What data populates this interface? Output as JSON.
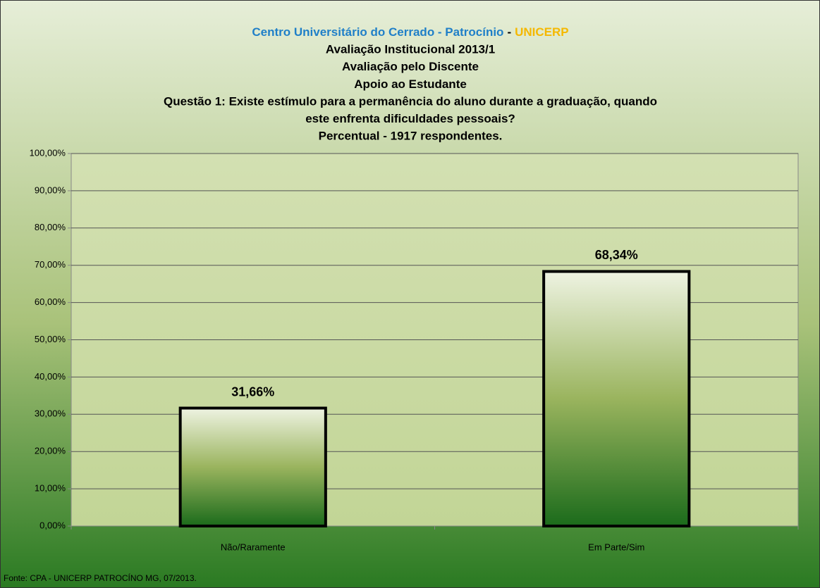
{
  "chart_data": {
    "type": "bar",
    "title": [
      [
        "Centro Universitário do Cerrado - Patrocínio",
        "-",
        "UNICERP"
      ],
      [
        "Avaliação Institucional 2013/1"
      ],
      [
        "Avaliação pelo Discente"
      ],
      [
        "Apoio ao Estudante"
      ],
      [
        "Questão 1: Existe estímulo para a permanência do aluno durante a graduação, quando"
      ],
      [
        "este enfrenta dificuldades pessoais?"
      ],
      [
        "Percentual - 1917 respondentes."
      ]
    ],
    "title_colors": [
      "#1f7fc8",
      "#000000",
      "#f5b800"
    ],
    "categories": [
      "Não/Raramente",
      "Em Parte/Sim"
    ],
    "values": [
      31.66,
      68.34
    ],
    "value_labels": [
      "31,66%",
      "68,34%"
    ],
    "color": "#1b6b1b",
    "ylim": [
      0,
      100
    ],
    "yticks": [
      {
        "value": 0,
        "label": "0,00%"
      },
      {
        "value": 10,
        "label": "10,00%"
      },
      {
        "value": 20,
        "label": "20,00%"
      },
      {
        "value": 30,
        "label": "30,00%"
      },
      {
        "value": 40,
        "label": "40,00%"
      },
      {
        "value": 50,
        "label": "50,00%"
      },
      {
        "value": 60,
        "label": "60,00%"
      },
      {
        "value": 70,
        "label": "70,00%"
      },
      {
        "value": 80,
        "label": "80,00%"
      },
      {
        "value": 90,
        "label": "90,00%"
      },
      {
        "value": 100,
        "label": "100,00%"
      }
    ],
    "grid": true,
    "source": "Fonte: CPA - UNICERP PATROCÍNO MG, 07/2013."
  }
}
